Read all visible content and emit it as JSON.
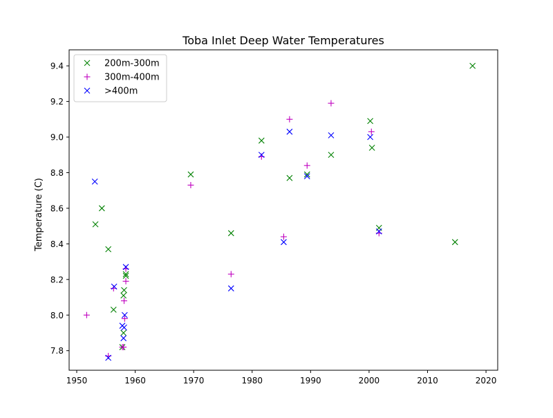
{
  "chart_data": {
    "type": "scatter",
    "title": "Toba Inlet Deep Water Temperatures",
    "xlabel": "",
    "ylabel": "Temperature (C)",
    "xlim": [
      1948.7,
      2022.0
    ],
    "ylim": [
      7.69,
      9.49
    ],
    "xticks": [
      1950,
      1960,
      1970,
      1980,
      1990,
      2000,
      2010,
      2020
    ],
    "xtick_labels": [
      "1950",
      "1960",
      "1970",
      "1980",
      "1990",
      "2000",
      "2010",
      "2020"
    ],
    "yticks": [
      7.8,
      8.0,
      8.2,
      8.4,
      8.6,
      8.8,
      9.0,
      9.2,
      9.4
    ],
    "ytick_labels": [
      "7.8",
      "8.0",
      "8.2",
      "8.4",
      "8.6",
      "8.8",
      "9.0",
      "9.2",
      "9.4"
    ],
    "grid": false,
    "legend_position": "top-left",
    "series": [
      {
        "name": "200m-300m",
        "marker": "x",
        "color": "#008000",
        "points": [
          {
            "x": 1953.2,
            "y": 8.51
          },
          {
            "x": 1954.3,
            "y": 8.6
          },
          {
            "x": 1955.4,
            "y": 8.37
          },
          {
            "x": 1956.3,
            "y": 8.03
          },
          {
            "x": 1957.8,
            "y": 7.82
          },
          {
            "x": 1958.0,
            "y": 7.9
          },
          {
            "x": 1958.0,
            "y": 8.11
          },
          {
            "x": 1958.1,
            "y": 8.14
          },
          {
            "x": 1958.4,
            "y": 8.22
          },
          {
            "x": 1958.4,
            "y": 8.23
          },
          {
            "x": 1969.5,
            "y": 8.79
          },
          {
            "x": 1976.4,
            "y": 8.46
          },
          {
            "x": 1981.6,
            "y": 8.98
          },
          {
            "x": 1986.4,
            "y": 8.77
          },
          {
            "x": 1989.4,
            "y": 8.79
          },
          {
            "x": 1993.5,
            "y": 8.9
          },
          {
            "x": 2000.2,
            "y": 9.09
          },
          {
            "x": 2000.5,
            "y": 8.94
          },
          {
            "x": 2001.7,
            "y": 8.49
          },
          {
            "x": 2014.7,
            "y": 8.41
          },
          {
            "x": 2017.7,
            "y": 9.4
          }
        ]
      },
      {
        "name": "300m-400m",
        "marker": "+",
        "color": "#bf00bf",
        "points": [
          {
            "x": 1951.7,
            "y": 8.0
          },
          {
            "x": 1955.4,
            "y": 7.77
          },
          {
            "x": 1956.3,
            "y": 8.15
          },
          {
            "x": 1957.8,
            "y": 7.82
          },
          {
            "x": 1958.0,
            "y": 7.82
          },
          {
            "x": 1958.1,
            "y": 8.08
          },
          {
            "x": 1958.2,
            "y": 7.98
          },
          {
            "x": 1958.4,
            "y": 8.19
          },
          {
            "x": 1958.4,
            "y": 8.26
          },
          {
            "x": 1969.5,
            "y": 8.73
          },
          {
            "x": 1976.4,
            "y": 8.23
          },
          {
            "x": 1981.6,
            "y": 8.89
          },
          {
            "x": 1985.4,
            "y": 8.44
          },
          {
            "x": 1986.4,
            "y": 9.1
          },
          {
            "x": 1989.4,
            "y": 8.84
          },
          {
            "x": 1993.5,
            "y": 9.19
          },
          {
            "x": 2000.4,
            "y": 9.03
          },
          {
            "x": 2001.7,
            "y": 8.46
          }
        ]
      },
      {
        "name": ">400m",
        "marker": "x",
        "color": "#0000ff",
        "points": [
          {
            "x": 1953.1,
            "y": 8.75
          },
          {
            "x": 1955.4,
            "y": 7.76
          },
          {
            "x": 1956.4,
            "y": 8.16
          },
          {
            "x": 1957.8,
            "y": 7.94
          },
          {
            "x": 1958.0,
            "y": 7.87
          },
          {
            "x": 1958.1,
            "y": 7.93
          },
          {
            "x": 1958.2,
            "y": 8.0
          },
          {
            "x": 1958.4,
            "y": 8.27
          },
          {
            "x": 1976.4,
            "y": 8.15
          },
          {
            "x": 1981.6,
            "y": 8.9
          },
          {
            "x": 1985.4,
            "y": 8.41
          },
          {
            "x": 1986.4,
            "y": 9.03
          },
          {
            "x": 1989.4,
            "y": 8.78
          },
          {
            "x": 1993.5,
            "y": 9.01
          },
          {
            "x": 2000.2,
            "y": 9.0
          },
          {
            "x": 2001.7,
            "y": 8.47
          }
        ]
      }
    ]
  }
}
